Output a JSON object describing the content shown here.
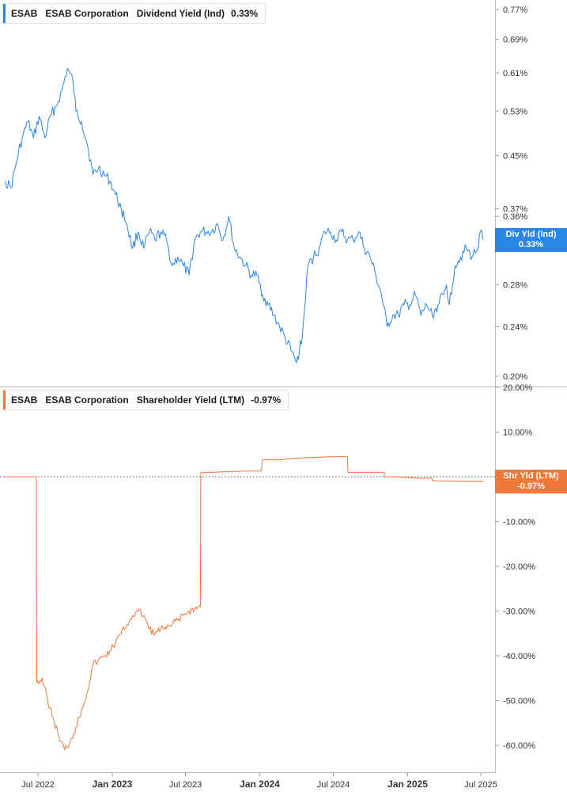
{
  "colors": {
    "dividend": "#2a86e6",
    "shareholder": "#f07839",
    "grid": "#d0d0d0",
    "axis_text": "#333333"
  },
  "panels": {
    "dividend": {
      "ticker": "ESAB",
      "company": "ESAB Corporation",
      "series": "Dividend Yield (Ind)",
      "value": "0.33%",
      "tag_label": "Div Yld (Ind)",
      "tag_value": "0.33%"
    },
    "shareholder": {
      "ticker": "ESAB",
      "company": "ESAB Corporation",
      "series": "Shareholder Yield (LTM)",
      "value": "-0.97%",
      "tag_label": "Shr Yld (LTM)",
      "tag_value": "-0.97%"
    }
  },
  "chart_data": [
    {
      "type": "line",
      "name": "Dividend Yield (Ind)",
      "y_scale": "log",
      "y_ticks": [
        "0.77%",
        "0.69%",
        "0.61%",
        "0.53%",
        "0.45%",
        "0.37%",
        "0.36%",
        "0.28%",
        "0.24%",
        "0.20%"
      ],
      "y_tick_values": [
        0.77,
        0.69,
        0.61,
        0.53,
        0.45,
        0.37,
        0.36,
        0.28,
        0.24,
        0.2
      ],
      "ylim": [
        0.2,
        0.79
      ],
      "x": [
        "2022-04-11",
        "2022-04-25",
        "2022-05-09",
        "2022-05-23",
        "2022-06-06",
        "2022-06-20",
        "2022-07-04",
        "2022-07-18",
        "2022-08-01",
        "2022-08-15",
        "2022-08-29",
        "2022-09-12",
        "2022-09-26",
        "2022-10-03",
        "2022-10-17",
        "2022-10-31",
        "2022-11-14",
        "2022-11-28",
        "2022-12-12",
        "2022-12-26",
        "2023-01-09",
        "2023-01-23",
        "2023-02-06",
        "2023-02-20",
        "2023-03-06",
        "2023-03-20",
        "2023-04-03",
        "2023-04-17",
        "2023-05-01",
        "2023-05-15",
        "2023-05-29",
        "2023-06-12",
        "2023-06-26",
        "2023-07-10",
        "2023-07-24",
        "2023-08-07",
        "2023-08-21",
        "2023-09-04",
        "2023-09-18",
        "2023-10-02",
        "2023-10-16",
        "2023-10-30",
        "2023-11-13",
        "2023-11-27",
        "2023-12-11",
        "2023-12-25",
        "2024-01-08",
        "2024-01-22",
        "2024-02-05",
        "2024-02-19",
        "2024-03-04",
        "2024-03-18",
        "2024-04-01",
        "2024-04-08",
        "2024-04-15",
        "2024-04-29",
        "2024-05-13",
        "2024-05-27",
        "2024-06-10",
        "2024-06-24",
        "2024-07-08",
        "2024-07-22",
        "2024-08-05",
        "2024-08-19",
        "2024-09-02",
        "2024-09-16",
        "2024-09-30",
        "2024-10-14",
        "2024-10-28",
        "2024-11-11",
        "2024-11-25",
        "2024-12-09",
        "2024-12-23",
        "2025-01-06",
        "2025-01-20",
        "2025-02-03",
        "2025-02-17",
        "2025-03-03",
        "2025-03-17",
        "2025-03-31",
        "2025-04-07",
        "2025-04-14",
        "2025-04-28",
        "2025-05-12",
        "2025-05-26",
        "2025-06-09",
        "2025-06-23",
        "2025-06-30",
        "2025-07-07"
      ],
      "values": [
        0.41,
        0.4,
        0.44,
        0.48,
        0.51,
        0.48,
        0.52,
        0.48,
        0.52,
        0.54,
        0.57,
        0.62,
        0.59,
        0.53,
        0.51,
        0.47,
        0.42,
        0.43,
        0.42,
        0.41,
        0.39,
        0.37,
        0.35,
        0.32,
        0.34,
        0.32,
        0.34,
        0.33,
        0.34,
        0.33,
        0.3,
        0.31,
        0.3,
        0.29,
        0.33,
        0.34,
        0.34,
        0.34,
        0.35,
        0.33,
        0.36,
        0.32,
        0.31,
        0.3,
        0.29,
        0.29,
        0.27,
        0.26,
        0.25,
        0.24,
        0.23,
        0.22,
        0.21,
        0.22,
        0.23,
        0.3,
        0.31,
        0.32,
        0.34,
        0.34,
        0.33,
        0.34,
        0.33,
        0.33,
        0.34,
        0.32,
        0.31,
        0.29,
        0.27,
        0.24,
        0.25,
        0.25,
        0.26,
        0.26,
        0.27,
        0.25,
        0.26,
        0.25,
        0.26,
        0.27,
        0.28,
        0.26,
        0.3,
        0.31,
        0.32,
        0.31,
        0.32,
        0.34,
        0.33
      ]
    },
    {
      "type": "line",
      "name": "Shareholder Yield (LTM)",
      "y_ticks": [
        "20.00%",
        "10.00%",
        "-10.00%",
        "-20.00%",
        "-30.00%",
        "-40.00%",
        "-50.00%",
        "-60.00%"
      ],
      "y_tick_values": [
        20,
        10,
        -10,
        -20,
        -30,
        -40,
        -50,
        -60
      ],
      "ylim": [
        -64,
        20
      ],
      "reference_line": 0,
      "x": [
        "2022-04-11",
        "2022-06-27",
        "2022-06-28",
        "2022-07-11",
        "2022-07-25",
        "2022-08-08",
        "2022-08-22",
        "2022-09-05",
        "2022-09-19",
        "2022-10-03",
        "2022-10-17",
        "2022-10-31",
        "2022-11-14",
        "2022-11-28",
        "2022-12-12",
        "2022-12-26",
        "2023-01-09",
        "2023-01-23",
        "2023-02-06",
        "2023-02-20",
        "2023-03-06",
        "2023-03-20",
        "2023-04-03",
        "2023-04-17",
        "2023-05-01",
        "2023-05-15",
        "2023-05-29",
        "2023-06-12",
        "2023-06-26",
        "2023-07-10",
        "2023-07-24",
        "2023-08-07",
        "2023-08-08",
        "2023-09-04",
        "2023-10-02",
        "2023-11-01",
        "2023-12-01",
        "2024-01-05",
        "2024-01-08",
        "2024-03-01",
        "2024-03-04",
        "2024-05-01",
        "2024-06-03",
        "2024-07-01",
        "2024-08-05",
        "2024-08-06",
        "2024-09-02",
        "2024-10-01",
        "2024-11-04",
        "2024-11-05",
        "2024-12-02",
        "2025-01-06",
        "2025-02-03",
        "2025-03-03",
        "2025-03-04",
        "2025-04-01",
        "2025-05-05",
        "2025-06-02",
        "2025-07-07"
      ],
      "values": [
        0.0,
        0.0,
        -46.0,
        -45.0,
        -50.0,
        -54.0,
        -58.0,
        -61.0,
        -59.0,
        -56.0,
        -52.0,
        -48.0,
        -42.0,
        -41.0,
        -40.0,
        -39.0,
        -37.0,
        -35.0,
        -33.0,
        -31.0,
        -30.0,
        -31.0,
        -34.0,
        -35.0,
        -34.0,
        -34.0,
        -33.0,
        -32.0,
        -31.0,
        -30.0,
        -29.5,
        -29.0,
        1.0,
        1.0,
        1.1,
        1.2,
        1.3,
        1.3,
        3.8,
        3.8,
        4.0,
        4.3,
        4.4,
        4.5,
        4.5,
        1.0,
        1.0,
        1.0,
        1.0,
        0.0,
        0.0,
        -0.2,
        -0.3,
        -0.3,
        -0.9,
        -0.9,
        -0.95,
        -0.97,
        -0.97
      ]
    }
  ],
  "x_axis": {
    "labels": [
      "Jul 2022",
      "Jan 2023",
      "Jul 2023",
      "Jan 2024",
      "Jul 2024",
      "Jan 2025",
      "Jul 2025"
    ],
    "bold": [
      false,
      true,
      false,
      true,
      false,
      true,
      false
    ]
  }
}
